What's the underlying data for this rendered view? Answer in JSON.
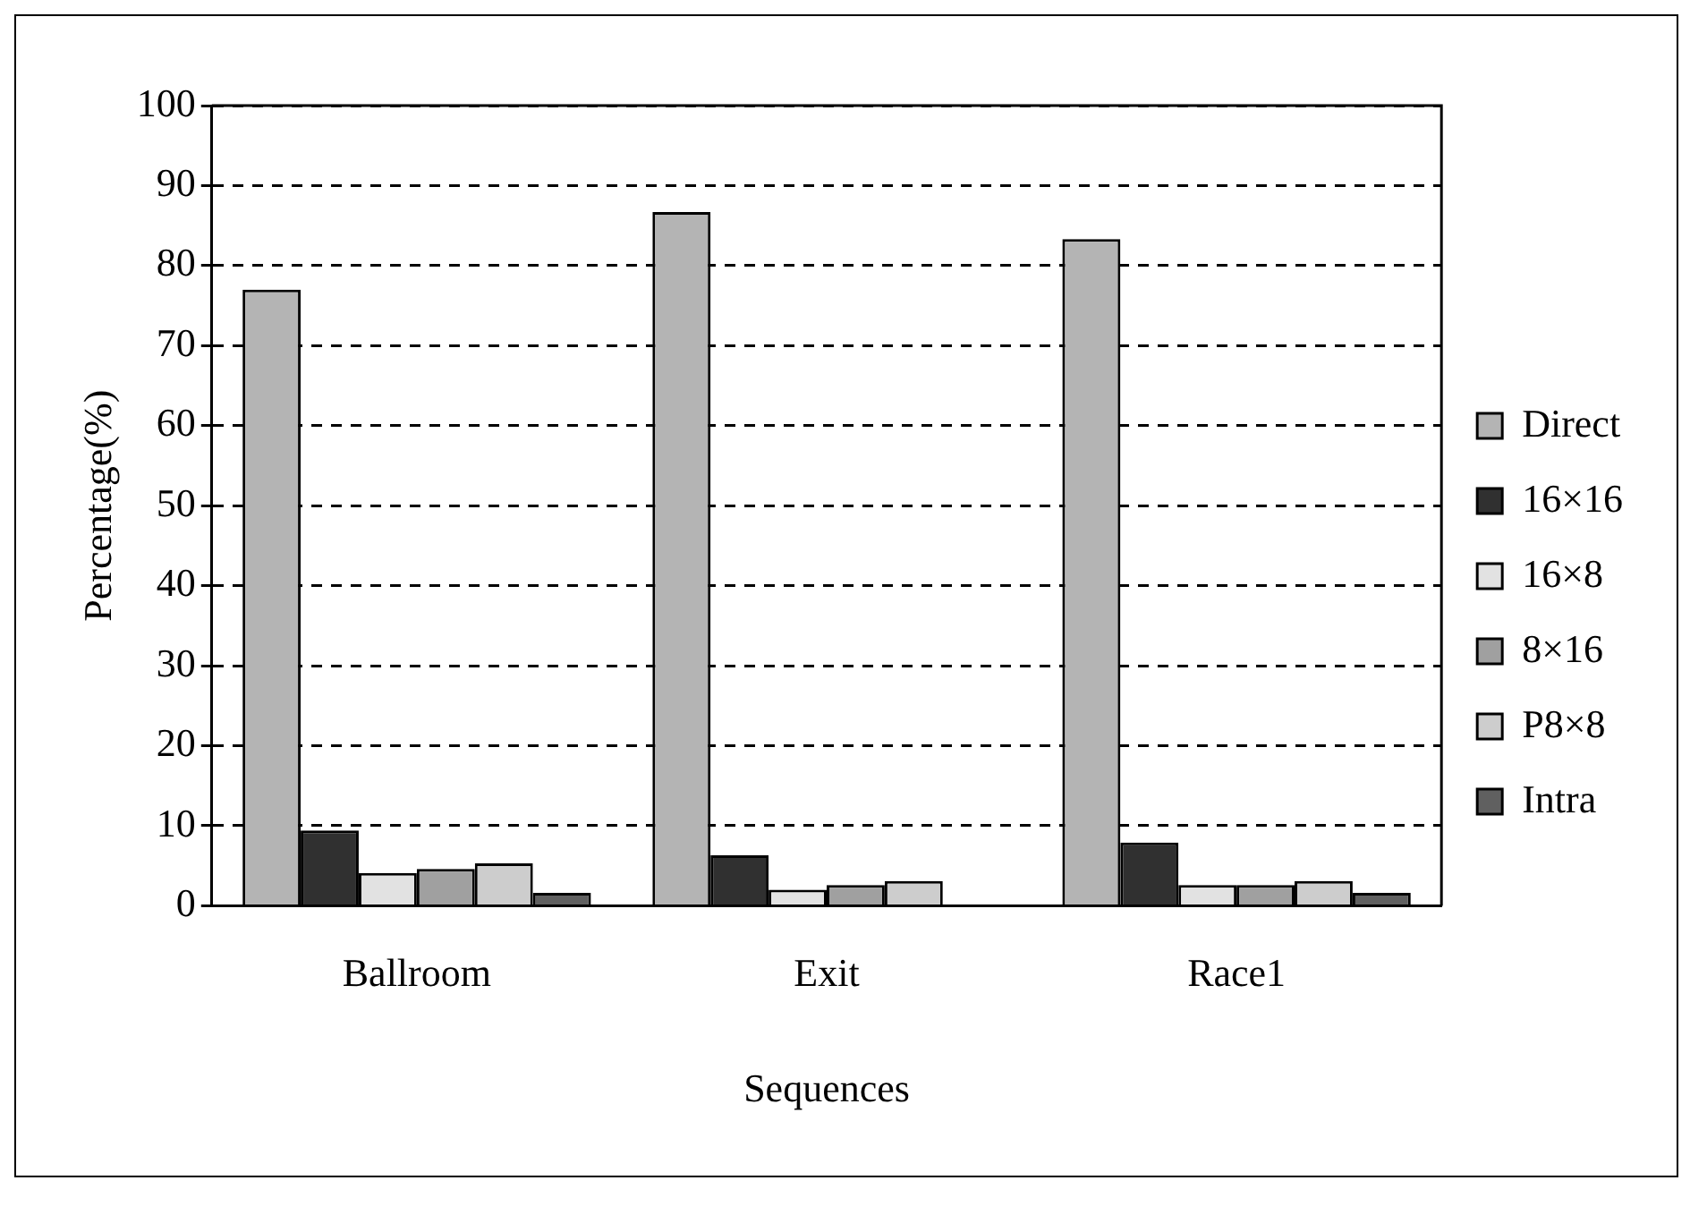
{
  "chart_data": {
    "type": "bar",
    "xlabel": "Sequences",
    "ylabel": "Percentage(%)",
    "categories": [
      "Ballroom",
      "Exit",
      "Race1"
    ],
    "series": [
      {
        "name": "Direct",
        "color": "#b4b4b4",
        "values": [
          77,
          86.7,
          83.3
        ]
      },
      {
        "name": "16×16",
        "color": "#303030",
        "values": [
          9.4,
          6.3,
          7.9
        ]
      },
      {
        "name": "16×8",
        "color": "#e2e2e2",
        "values": [
          4.1,
          2,
          2.6
        ]
      },
      {
        "name": "8×16",
        "color": "#a0a0a0",
        "values": [
          4.6,
          2.6,
          2.6
        ]
      },
      {
        "name": "P8×8",
        "color": "#cdcdcd",
        "values": [
          5.3,
          3.1,
          3.1
        ]
      },
      {
        "name": "Intra",
        "color": "#606060",
        "values": [
          1.6,
          0,
          1.6
        ]
      }
    ],
    "ylim": [
      0,
      100
    ],
    "yticks": [
      0,
      10,
      20,
      30,
      40,
      50,
      60,
      70,
      80,
      90,
      100
    ],
    "grid": "y",
    "legend": "right"
  }
}
